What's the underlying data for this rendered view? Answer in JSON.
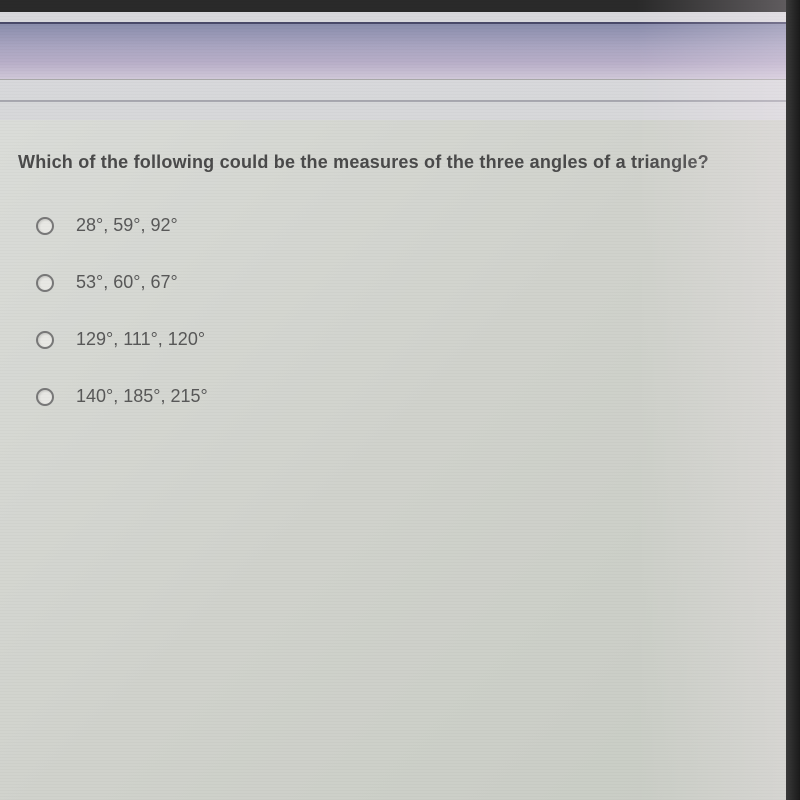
{
  "question": {
    "text": "Which of the following could be the measures of the three angles of a triangle?"
  },
  "options": [
    {
      "label": "28°, 59°, 92°"
    },
    {
      "label": "53°, 60°, 67°"
    },
    {
      "label": "129°, 111°, 120°"
    },
    {
      "label": "140°, 185°, 215°"
    }
  ],
  "colors": {
    "header_gradient_top": "#8a8dac",
    "header_gradient_bottom": "#d0c8d8",
    "background": "#d4d6d0",
    "text_primary": "#4a4a4a",
    "text_option": "#585858",
    "radio_border": "#787878"
  },
  "typography": {
    "question_fontsize": 18,
    "question_weight": "bold",
    "option_fontsize": 18,
    "option_weight": "500"
  },
  "layout": {
    "option_spacing": 36,
    "radio_size": 18,
    "content_padding_top": 32
  }
}
